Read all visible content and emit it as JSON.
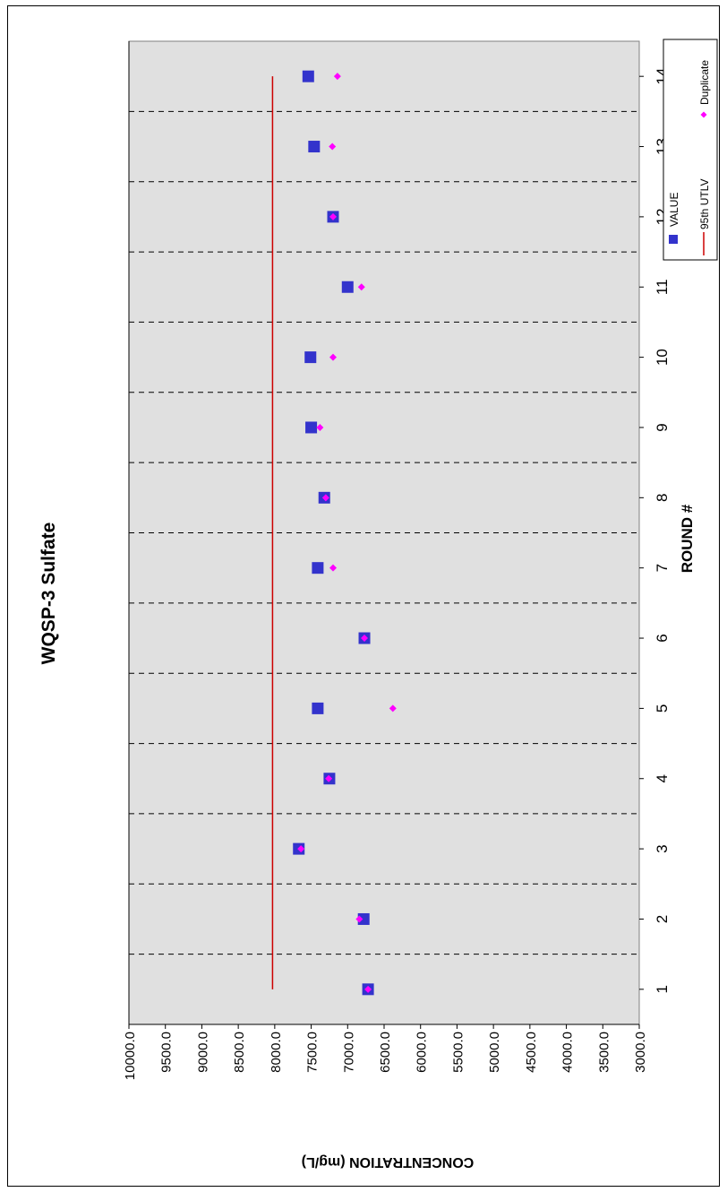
{
  "chart_data": {
    "type": "scatter",
    "title": "WQSP-3 Sulfate",
    "xlabel": "ROUND #",
    "ylabel": "CONCENTRATION (mg/L)",
    "orientation": "rotated-90-clockwise",
    "categories": [
      "1",
      "2",
      "3",
      "4",
      "5",
      "6",
      "7",
      "8",
      "9",
      "10",
      "11",
      "12",
      "13",
      "14"
    ],
    "x_tick_labels": [
      "1",
      "2",
      "3",
      "4",
      "5",
      "6",
      "7",
      "8",
      "9",
      "10",
      "11",
      "12",
      "13",
      "14"
    ],
    "y_tick_labels": [
      "10000.0",
      "9500.0",
      "9000.0",
      "8500.0",
      "8000.0",
      "7500.0",
      "7000.0",
      "6500.0",
      "6000.0",
      "5500.0",
      "5000.0",
      "4500.0",
      "4000.0",
      "3500.0",
      "3000.0"
    ],
    "xlim": [
      0.5,
      14.5
    ],
    "ylim": [
      3000,
      10000
    ],
    "y_reversed": true,
    "grid": "dashed vertical lines between rounds",
    "plot_background": "#e0e0e0",
    "legend_position": "top-right",
    "series": [
      {
        "name": "VALUE",
        "marker": "square",
        "color": "#3333cc",
        "values": [
          6720,
          6780,
          7670,
          7250,
          7410,
          6770,
          7410,
          7320,
          7500,
          7510,
          7000,
          7200,
          7460,
          7540
        ]
      },
      {
        "name": "Duplicate",
        "marker": "diamond",
        "color": "#ff00ff",
        "values": [
          6720,
          6840,
          7640,
          7260,
          6380,
          6770,
          7200,
          7300,
          7380,
          7200,
          6810,
          7200,
          7210,
          7140
        ]
      },
      {
        "name": "95th UTLV",
        "marker": "line",
        "color": "#cc0000",
        "values": [
          8030,
          8030,
          8030,
          8030,
          8030,
          8030,
          8030,
          8030,
          8030,
          8030,
          8030,
          8030,
          8030,
          8030
        ]
      }
    ]
  }
}
